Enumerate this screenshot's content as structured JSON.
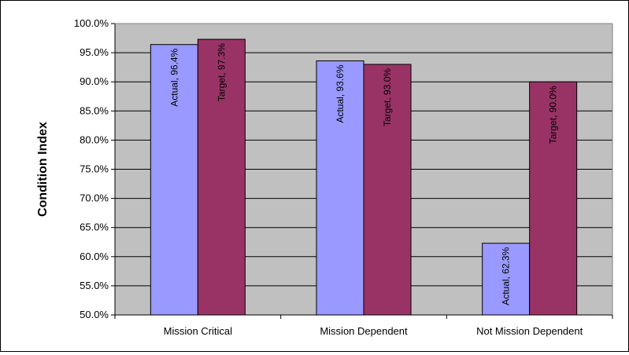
{
  "chart_data": {
    "type": "bar",
    "categories": [
      "Mission Critical",
      "Mission Dependent",
      "Not Mission Dependent"
    ],
    "series": [
      {
        "name": "Actual",
        "values": [
          96.4,
          93.6,
          62.3
        ],
        "color": "#9999FF"
      },
      {
        "name": "Target",
        "values": [
          97.3,
          93.0,
          90.0
        ],
        "color": "#993366"
      }
    ],
    "data_labels": [
      [
        "Actual, 96.4%",
        "Actual, 93.6%",
        "Actual, 62.3%"
      ],
      [
        "Target, 97.3%",
        "Target, 93.0%",
        "Target, 90.0%"
      ]
    ],
    "ylabel": "Condition Index",
    "ylim": [
      50,
      100
    ],
    "yticks": [
      50,
      55,
      60,
      65,
      70,
      75,
      80,
      85,
      90,
      95,
      100
    ],
    "ytick_labels": [
      "50.0%",
      "55.0%",
      "60.0%",
      "65.0%",
      "70.0%",
      "75.0%",
      "80.0%",
      "85.0%",
      "90.0%",
      "95.0%",
      "100.0%"
    ],
    "grid": true,
    "plot_background": "#C0C0C0"
  }
}
